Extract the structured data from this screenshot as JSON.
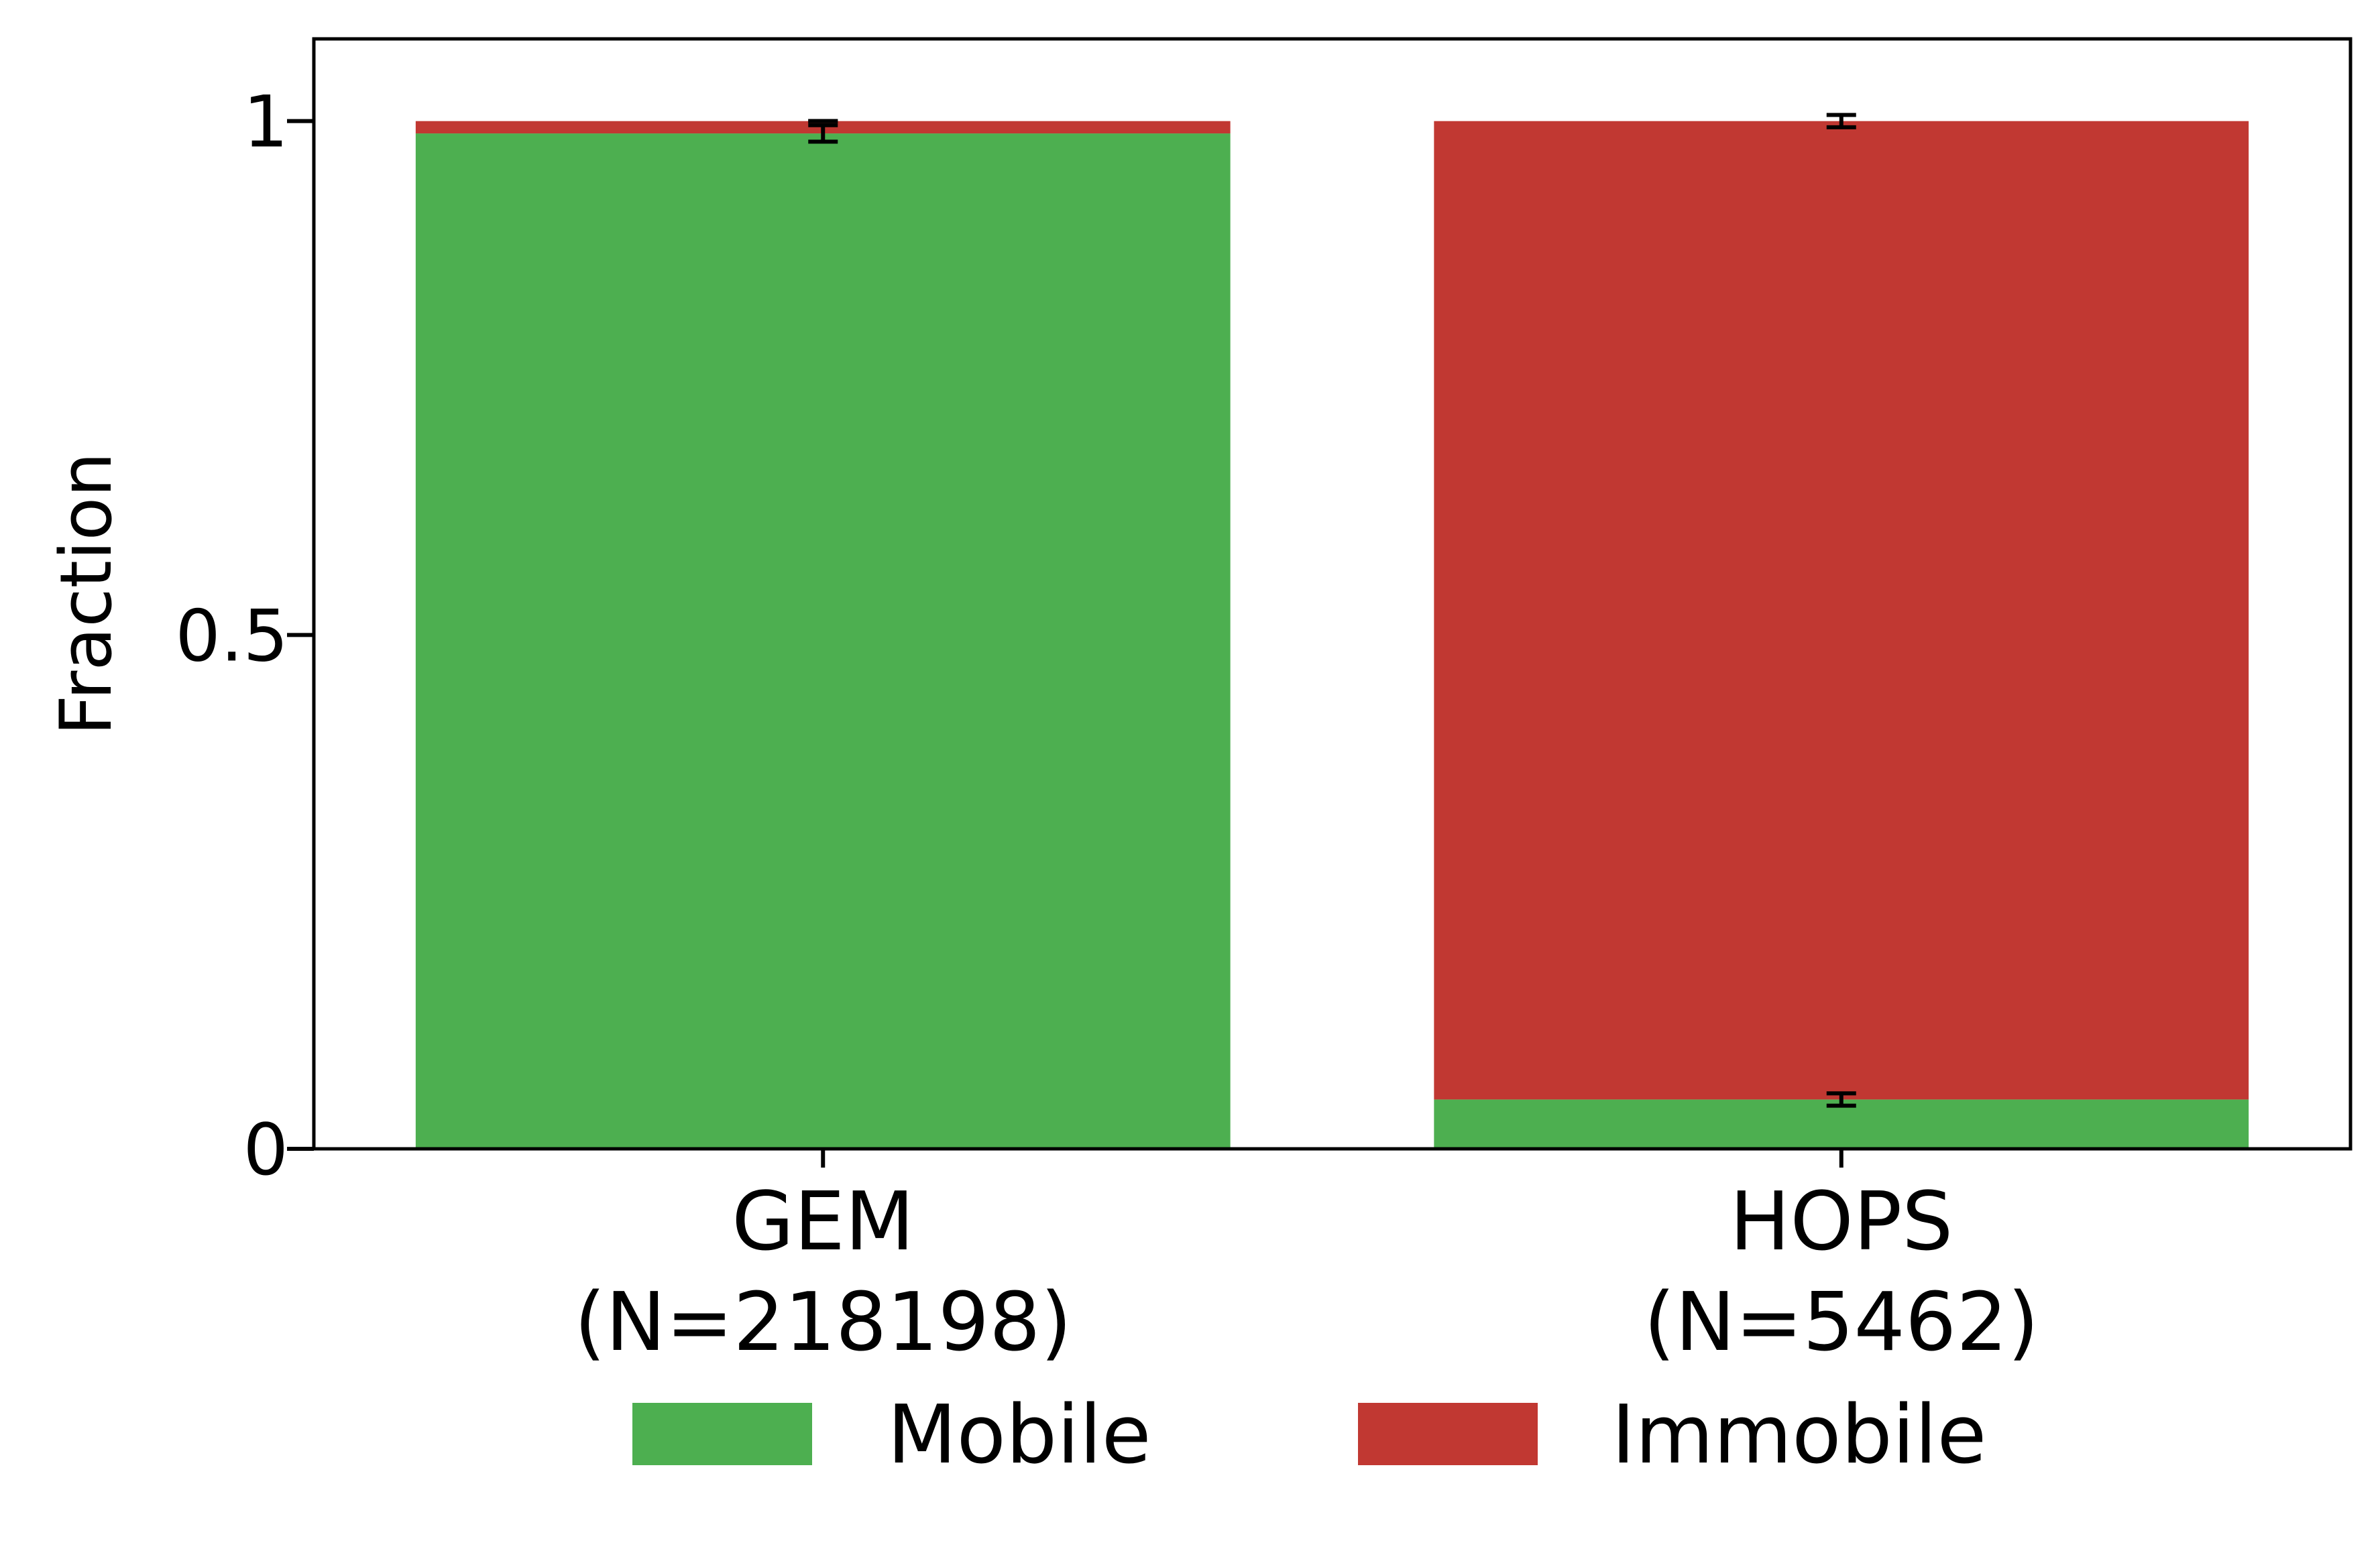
{
  "chart_data": {
    "type": "bar",
    "stacked": true,
    "title": "",
    "xlabel": "",
    "ylabel": "Fraction",
    "ylim": [
      0,
      1.08
    ],
    "yticks": [
      {
        "value": 0,
        "label": "0"
      },
      {
        "value": 0.5,
        "label": "0.5"
      },
      {
        "value": 1,
        "label": "1"
      }
    ],
    "categories": [
      {
        "name": "GEM",
        "count_label": "(N=218198)"
      },
      {
        "name": "HOPS",
        "count_label": "(N=5462)"
      }
    ],
    "series": [
      {
        "name": "Mobile",
        "color": "#4daf50",
        "values": [
          0.988,
          0.048
        ],
        "error": [
          0.008,
          0.006
        ]
      },
      {
        "name": "Immobile",
        "color": "#c13832",
        "values": [
          0.012,
          0.952
        ],
        "error": [
          0.0,
          0.006
        ]
      }
    ],
    "grid": false,
    "legend_position": "bottom-center"
  }
}
